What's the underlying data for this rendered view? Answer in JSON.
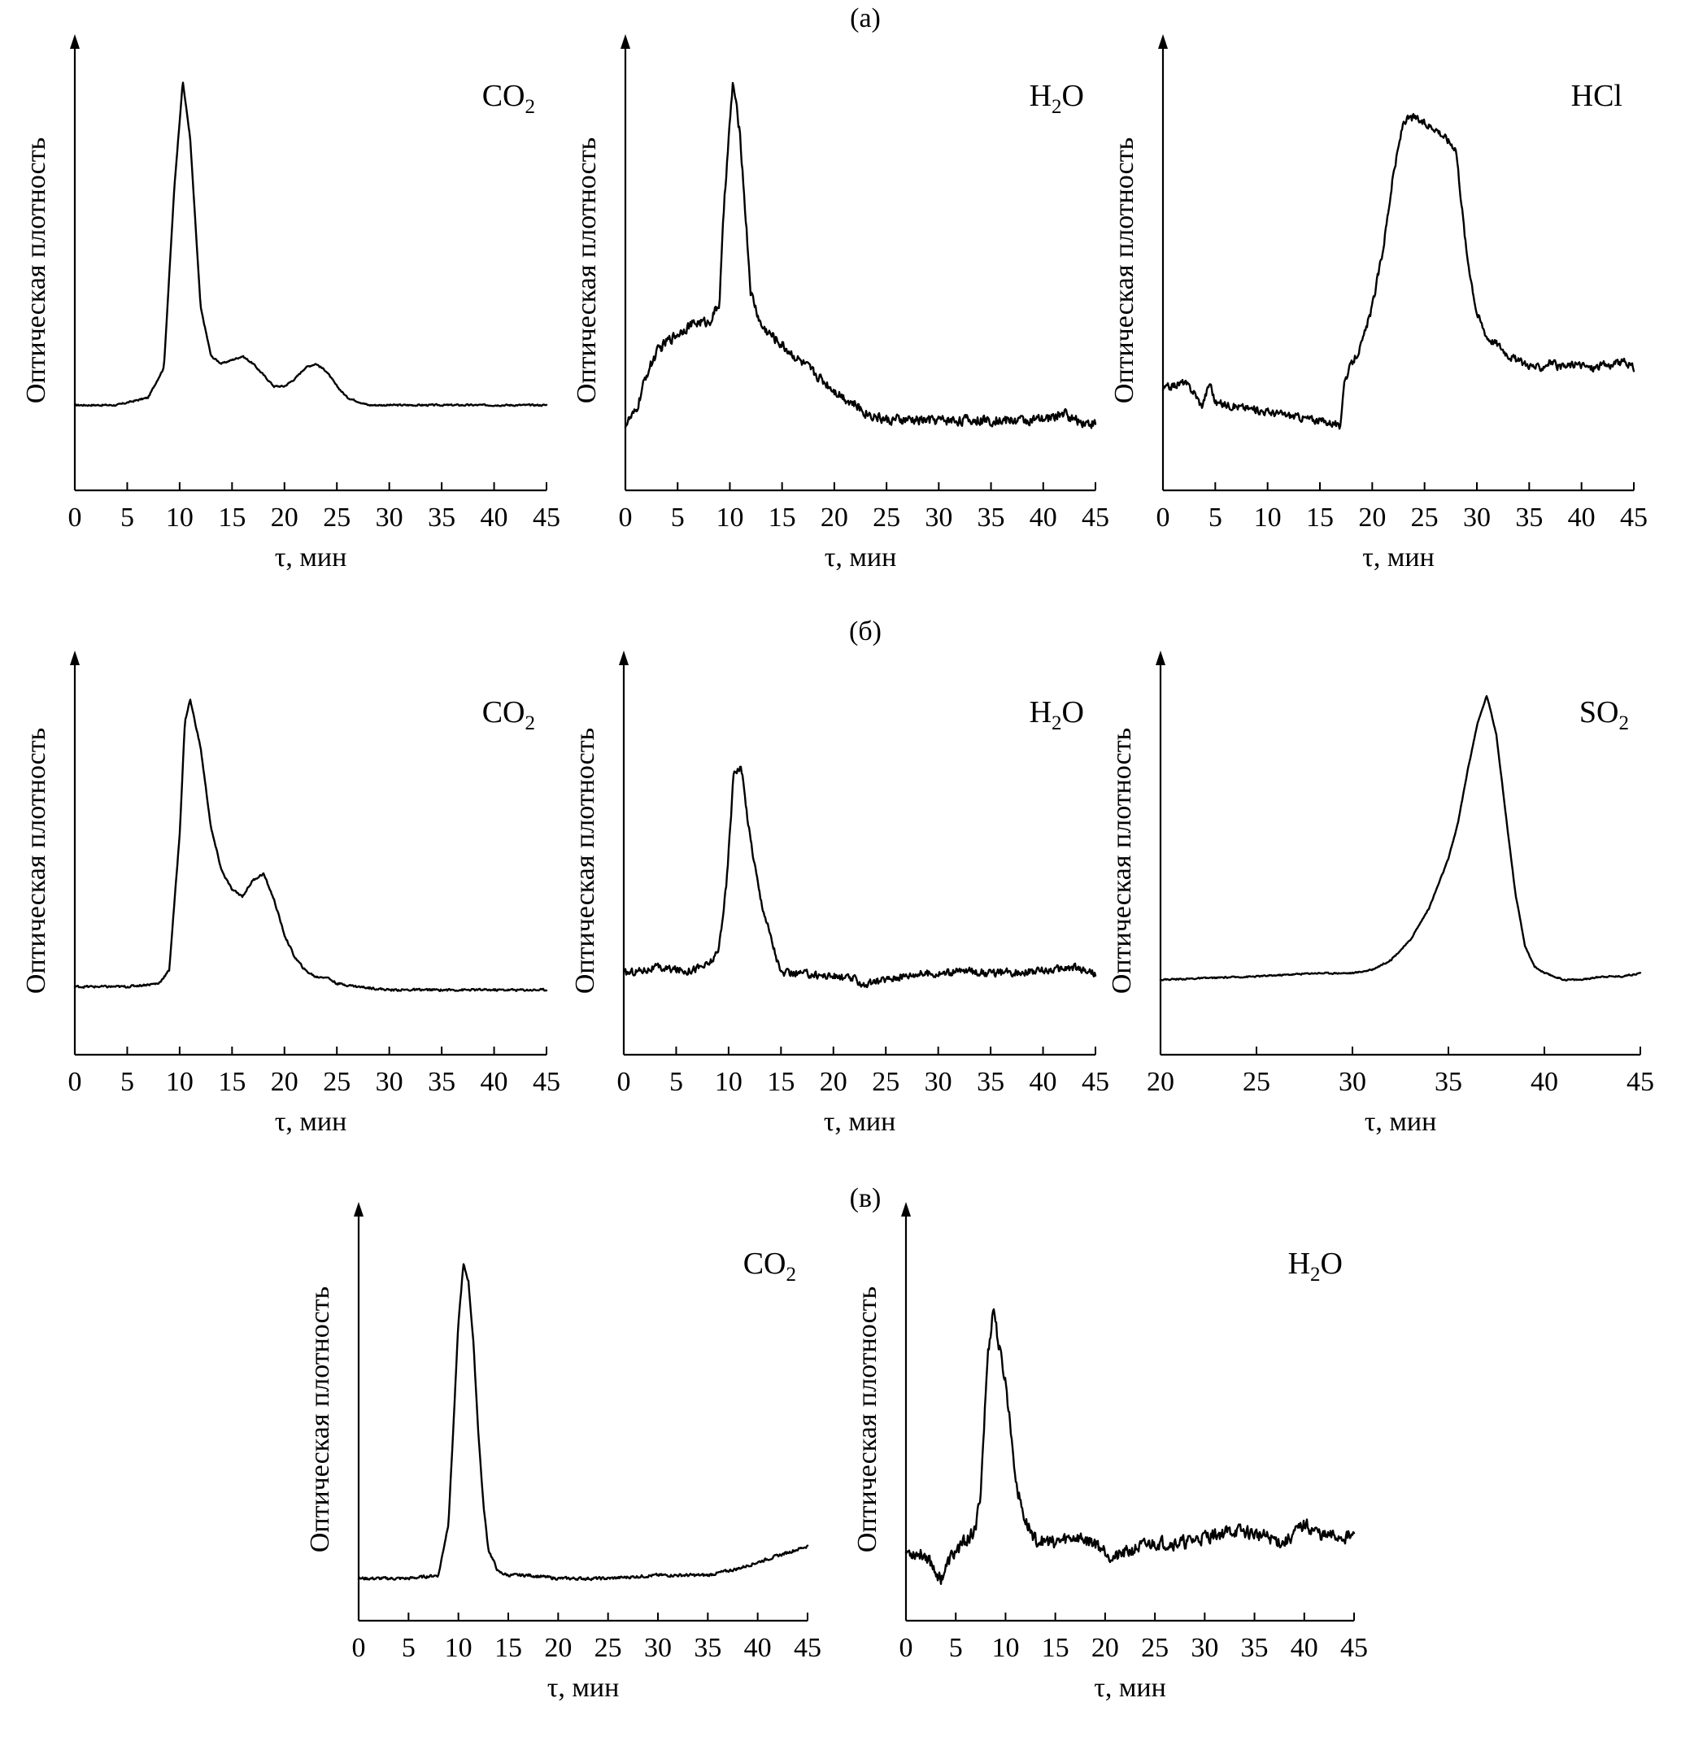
{
  "group_labels": [
    "(а)",
    "(б)",
    "(в)"
  ],
  "chart_data": [
    {
      "type": "line",
      "group": "(а)",
      "species": "CO",
      "species_sub": "2",
      "xlabel": "τ, мин",
      "ylabel": "Оптическая плотность",
      "xlim": [
        0,
        45
      ],
      "ylim": [
        0,
        1
      ],
      "x_ticks": [
        0,
        5,
        10,
        15,
        20,
        25,
        30,
        35,
        40,
        45
      ],
      "x": [
        0,
        4,
        7,
        8.5,
        9.5,
        10.3,
        11,
        12,
        13,
        14,
        15,
        16,
        17,
        18,
        19,
        20,
        21,
        22,
        23,
        24,
        25,
        26,
        28,
        30,
        35,
        40,
        45
      ],
      "values": [
        0.14,
        0.14,
        0.16,
        0.24,
        0.72,
        1.0,
        0.85,
        0.4,
        0.27,
        0.25,
        0.26,
        0.27,
        0.25,
        0.22,
        0.19,
        0.19,
        0.21,
        0.24,
        0.25,
        0.23,
        0.19,
        0.16,
        0.14,
        0.14,
        0.14,
        0.14,
        0.14
      ],
      "noise": 0.002
    },
    {
      "type": "line",
      "group": "(а)",
      "species": "H",
      "species_sub": "2",
      "species_suffix": "O",
      "xlabel": "τ, мин",
      "ylabel": "Оптическая плотность",
      "xlim": [
        0,
        45
      ],
      "ylim": [
        0,
        1
      ],
      "x_ticks": [
        0,
        5,
        10,
        15,
        20,
        25,
        30,
        35,
        40,
        45
      ],
      "x": [
        0,
        1,
        2,
        3,
        4,
        5,
        6,
        7,
        8,
        9,
        9.5,
        10.3,
        11,
        12,
        13,
        15,
        17,
        20,
        23,
        25,
        28,
        30,
        35,
        40,
        42,
        43,
        45
      ],
      "values": [
        0.09,
        0.12,
        0.22,
        0.28,
        0.31,
        0.33,
        0.35,
        0.36,
        0.36,
        0.41,
        0.7,
        1.0,
        0.85,
        0.44,
        0.35,
        0.3,
        0.25,
        0.18,
        0.12,
        0.1,
        0.1,
        0.1,
        0.1,
        0.1,
        0.12,
        0.1,
        0.09
      ],
      "noise": 0.012
    },
    {
      "type": "line",
      "group": "(а)",
      "species": "HCl",
      "xlabel": "τ, мин",
      "ylabel": "Оптическая плотность",
      "xlim": [
        0,
        45
      ],
      "ylim": [
        0,
        1
      ],
      "x_ticks": [
        0,
        5,
        10,
        15,
        20,
        25,
        30,
        35,
        40,
        45
      ],
      "x": [
        0,
        1,
        2,
        3,
        3.7,
        4.5,
        5,
        16.5,
        16.9,
        17.3,
        18,
        19,
        20,
        21,
        22,
        23,
        24,
        25,
        26,
        27,
        28,
        29,
        30,
        31,
        32,
        33,
        34,
        35,
        36,
        37,
        38,
        39,
        40,
        41,
        42,
        43,
        44,
        45
      ],
      "values": [
        0.2,
        0.21,
        0.22,
        0.19,
        0.15,
        0.22,
        0.16,
        0.1,
        0.08,
        0.22,
        0.27,
        0.33,
        0.44,
        0.6,
        0.82,
        0.98,
        0.99,
        0.97,
        0.96,
        0.93,
        0.9,
        0.6,
        0.42,
        0.35,
        0.33,
        0.3,
        0.28,
        0.27,
        0.26,
        0.28,
        0.26,
        0.27,
        0.27,
        0.26,
        0.27,
        0.27,
        0.28,
        0.26
      ],
      "noise": 0.01
    },
    {
      "type": "line",
      "group": "(б)",
      "species": "CO",
      "species_sub": "2",
      "xlabel": "τ, мин",
      "ylabel": "Оптическая плотность",
      "xlim": [
        0,
        45
      ],
      "ylim": [
        0,
        1
      ],
      "x_ticks": [
        0,
        5,
        10,
        15,
        20,
        25,
        30,
        35,
        40,
        45
      ],
      "x": [
        0,
        5,
        8,
        9,
        10,
        10.5,
        11,
        12,
        13,
        14,
        15,
        16,
        17,
        18,
        19,
        20,
        21,
        22,
        23,
        24,
        25,
        27,
        30,
        35,
        40,
        45
      ],
      "values": [
        0.11,
        0.11,
        0.12,
        0.16,
        0.58,
        0.93,
        1.0,
        0.85,
        0.6,
        0.47,
        0.41,
        0.39,
        0.44,
        0.46,
        0.38,
        0.27,
        0.2,
        0.16,
        0.14,
        0.14,
        0.12,
        0.11,
        0.1,
        0.1,
        0.1,
        0.1
      ],
      "noise": 0.003
    },
    {
      "type": "line",
      "group": "(б)",
      "species": "H",
      "species_sub": "2",
      "species_suffix": "O",
      "xlabel": "τ, мин",
      "ylabel": "Оптическая плотность",
      "xlim": [
        0,
        45
      ],
      "ylim": [
        0,
        1
      ],
      "x_ticks": [
        0,
        5,
        10,
        15,
        20,
        25,
        30,
        35,
        40,
        45
      ],
      "x": [
        0,
        3,
        6,
        8,
        9,
        9.8,
        10.5,
        11.2,
        12,
        13,
        14,
        15,
        17,
        20,
        22,
        23,
        25,
        28,
        30,
        33,
        35,
        40,
        43,
        45
      ],
      "values": [
        0.17,
        0.19,
        0.18,
        0.2,
        0.24,
        0.48,
        0.88,
        0.89,
        0.66,
        0.44,
        0.3,
        0.17,
        0.17,
        0.16,
        0.15,
        0.13,
        0.15,
        0.17,
        0.17,
        0.18,
        0.17,
        0.18,
        0.19,
        0.17
      ],
      "noise": 0.012
    },
    {
      "type": "line",
      "group": "(б)",
      "species": "SO",
      "species_sub": "2",
      "xlabel": "τ, мин",
      "ylabel": "Оптическая плотность",
      "xlim": [
        20,
        45
      ],
      "ylim": [
        0,
        1
      ],
      "x_ticks": [
        20,
        25,
        30,
        35,
        40,
        45
      ],
      "x": [
        20,
        25,
        28,
        30,
        31,
        32,
        33,
        34,
        35,
        35.5,
        36,
        36.5,
        37,
        37.5,
        38,
        38.5,
        39,
        39.5,
        40,
        41,
        42,
        43,
        44,
        45
      ],
      "values": [
        0.13,
        0.14,
        0.15,
        0.15,
        0.16,
        0.19,
        0.25,
        0.35,
        0.5,
        0.61,
        0.77,
        0.91,
        1.0,
        0.88,
        0.63,
        0.39,
        0.23,
        0.17,
        0.15,
        0.13,
        0.13,
        0.14,
        0.14,
        0.15
      ],
      "noise": 0.002
    },
    {
      "type": "line",
      "group": "(в)",
      "species": "CO",
      "species_sub": "2",
      "xlabel": "τ, мин",
      "ylabel": "Оптическая плотность",
      "xlim": [
        0,
        45
      ],
      "ylim": [
        0,
        1
      ],
      "x_ticks": [
        0,
        5,
        10,
        15,
        20,
        25,
        30,
        35,
        40,
        45
      ],
      "x": [
        0,
        5,
        8,
        9,
        9.5,
        10,
        10.5,
        11,
        11.5,
        12,
        12.5,
        13,
        14,
        15,
        17,
        20,
        25,
        30,
        35,
        38,
        40,
        42,
        44,
        45
      ],
      "values": [
        0.03,
        0.03,
        0.04,
        0.2,
        0.5,
        0.82,
        1.0,
        0.95,
        0.76,
        0.48,
        0.26,
        0.12,
        0.05,
        0.04,
        0.04,
        0.03,
        0.03,
        0.04,
        0.04,
        0.06,
        0.08,
        0.1,
        0.12,
        0.13
      ],
      "noise": 0.004
    },
    {
      "type": "line",
      "group": "(в)",
      "species": "H",
      "species_sub": "2",
      "species_suffix": "O",
      "xlabel": "τ, мин",
      "ylabel": "Оптическая плотность",
      "xlim": [
        0,
        45
      ],
      "ylim": [
        0,
        1
      ],
      "x_ticks": [
        0,
        5,
        10,
        15,
        20,
        25,
        30,
        35,
        40,
        45
      ],
      "x": [
        0,
        2,
        3.5,
        4.5,
        5.5,
        7,
        7.5,
        8.2,
        8.8,
        9.3,
        10,
        10.6,
        11.2,
        12,
        13,
        15,
        17,
        19,
        21,
        23,
        25,
        28,
        30,
        33,
        35,
        38,
        40,
        42,
        45
      ],
      "values": [
        0.12,
        0.11,
        0.03,
        0.1,
        0.14,
        0.19,
        0.32,
        0.76,
        0.93,
        0.8,
        0.68,
        0.5,
        0.32,
        0.22,
        0.16,
        0.15,
        0.17,
        0.15,
        0.1,
        0.13,
        0.15,
        0.15,
        0.17,
        0.19,
        0.18,
        0.15,
        0.21,
        0.17,
        0.17
      ],
      "noise": 0.02
    }
  ]
}
